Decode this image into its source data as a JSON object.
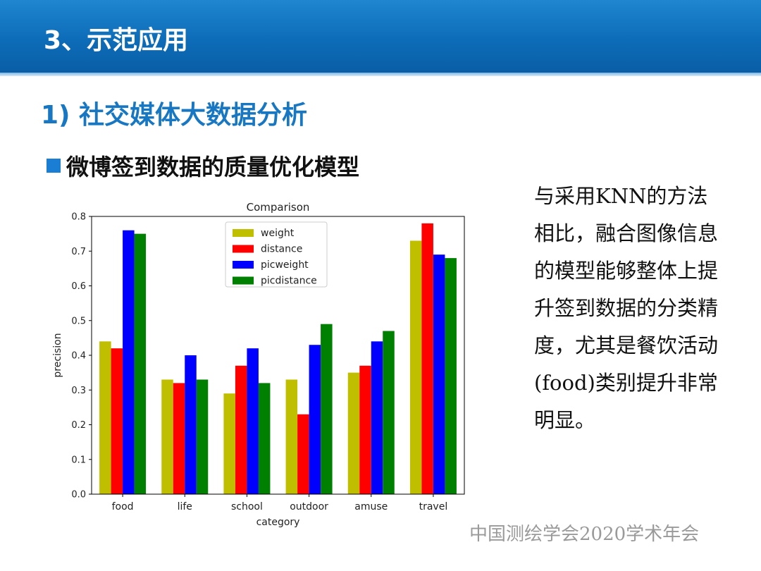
{
  "slide": {
    "section_title": "3、示范应用",
    "subtitle": "1) 社交媒体大数据分析",
    "bullet_text": "微博签到数据的质量优化模型",
    "side_text": "与采用KNN的方法相比，融合图像信息的模型能够整体上提升签到数据的分类精度，尤其是餐饮活动(food)类别提升非常明显。",
    "footer": "中国测绘学会2020学术年会"
  },
  "colors": {
    "header": "#0d6cb8",
    "subtitle": "#1777c2",
    "bullet": "#1a7fd4"
  },
  "chart_data": {
    "type": "bar",
    "title": "Comparison",
    "xlabel": "category",
    "ylabel": "precision",
    "ylim": [
      0,
      0.8
    ],
    "yticks": [
      "0.0",
      "0.1",
      "0.2",
      "0.3",
      "0.4",
      "0.5",
      "0.6",
      "0.7",
      "0.8"
    ],
    "categories": [
      "food",
      "life",
      "school",
      "outdoor",
      "amuse",
      "travel"
    ],
    "legend_position": "top-center",
    "grid": false,
    "series": [
      {
        "name": "weight",
        "color": "#bfbf00",
        "values": [
          0.44,
          0.33,
          0.29,
          0.33,
          0.35,
          0.73
        ]
      },
      {
        "name": "distance",
        "color": "#ff0000",
        "values": [
          0.42,
          0.32,
          0.37,
          0.23,
          0.37,
          0.78
        ]
      },
      {
        "name": "picweight",
        "color": "#0000ff",
        "values": [
          0.76,
          0.4,
          0.42,
          0.43,
          0.44,
          0.69
        ]
      },
      {
        "name": "picdistance",
        "color": "#008000",
        "values": [
          0.75,
          0.33,
          0.32,
          0.49,
          0.47,
          0.68
        ]
      }
    ]
  }
}
